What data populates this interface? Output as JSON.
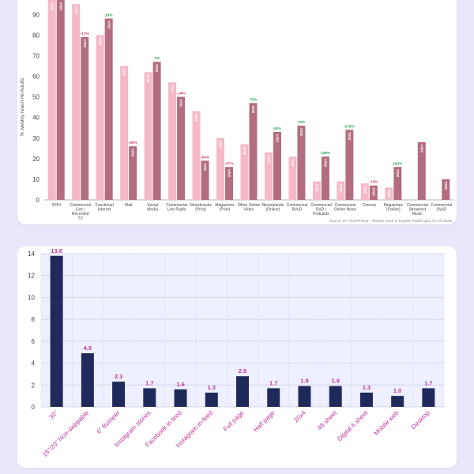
{
  "chart_data": [
    {
      "type": "bar",
      "xlabel": "",
      "ylabel": "% weekly reach All Adults",
      "ylim": [
        0,
        100
      ],
      "yticks": [
        0,
        10,
        20,
        30,
        40,
        50,
        60,
        70,
        80,
        90
      ],
      "grid": false,
      "source": "Source: IPA TouchPoints – Weekly reach of buyable media types for All Adults",
      "colors": {
        "2015": "#f5b8c8",
        "2024": "#b36c80",
        "positive": "#1a9e55",
        "negative": "#d0336c"
      },
      "categories": [
        {
          "label": [
            "OOH"
          ],
          "v2015": 97,
          "v2024": 97,
          "change": ""
        },
        {
          "label": [
            "Commercial",
            "Live /",
            "Recorded",
            "TV"
          ],
          "v2015": 95,
          "v2024": 79,
          "change": "-17%"
        },
        {
          "label": [
            "Functional",
            "Internet"
          ],
          "v2015": 80,
          "v2024": 88,
          "change": "10%"
        },
        {
          "label": [
            "Mail"
          ],
          "v2015": 65,
          "v2024": 26,
          "change": "-60%"
        },
        {
          "label": [
            "Social",
            "Media"
          ],
          "v2015": 62,
          "v2024": 67,
          "change": "7%"
        },
        {
          "label": [
            "Commercial",
            "Live Radio"
          ],
          "v2015": 57,
          "v2024": 50,
          "change": "-14%"
        },
        {
          "label": [
            "Newsbrands",
            "(Print)"
          ],
          "v2015": 43,
          "v2024": 19,
          "change": "-54%"
        },
        {
          "label": [
            "Magazines",
            "(Print)"
          ],
          "v2015": 30,
          "v2024": 16,
          "change": "-47%"
        },
        {
          "label": [
            "Other Online",
            "Video"
          ],
          "v2015": 27,
          "v2024": 47,
          "change": "75%"
        },
        {
          "label": [
            "Newsbrands",
            "(Online)"
          ],
          "v2015": 23,
          "v2024": 33,
          "change": "44%"
        },
        {
          "label": [
            "Commercial",
            "BVoD"
          ],
          "v2015": 21,
          "v2024": 36,
          "change": "73%"
        },
        {
          "label": [
            "Commercial",
            "RoD /",
            "Podcasts"
          ],
          "v2015": 9,
          "v2024": 21,
          "change": "138%"
        },
        {
          "label": [
            "Commercial",
            "Online News"
          ],
          "v2015": 9,
          "v2024": 34,
          "change": "275%"
        },
        {
          "label": [
            "Cinema"
          ],
          "v2015": 8,
          "v2024": 7,
          "change": "-13%"
        },
        {
          "label": [
            "Magazines",
            "(Online)"
          ],
          "v2015": 6,
          "v2024": 16,
          "change": "162%"
        },
        {
          "label": [
            "Commercial",
            "Streamed",
            "Music"
          ],
          "v2015": null,
          "v2024": 28,
          "change": ""
        },
        {
          "label": [
            "Commercial",
            "SVoD"
          ],
          "v2015": null,
          "v2024": 10,
          "change": ""
        }
      ]
    },
    {
      "type": "bar",
      "xlabel": "",
      "ylabel": "",
      "ylim": [
        0,
        14
      ],
      "yticks": [
        0,
        2,
        4,
        6,
        8,
        10,
        12,
        14
      ],
      "grid": true,
      "colors": {
        "bar": "#1f2a5a",
        "label": "#c0359a"
      },
      "categories": [
        "30\"",
        "15\"/20\" Non-skippable",
        "6\" Bumper",
        "Instagram stories",
        "Facebook in feed",
        "Instagram in-feed",
        "Full page",
        "Half page",
        "20x4",
        "48 sheet",
        "Digital 6 sheet",
        "Mobile web",
        "Desktop"
      ],
      "values": [
        13.8,
        4.9,
        2.3,
        1.7,
        1.6,
        1.3,
        2.8,
        1.7,
        1.9,
        1.9,
        1.3,
        1.0,
        1.7
      ],
      "value_labels": [
        "13.8",
        "4.9",
        "2.3",
        "1.7",
        "1.6",
        "1.3",
        "2.8",
        "1.7",
        "1.9",
        "1.9",
        "1.3",
        "1.0",
        "1.7"
      ]
    }
  ]
}
